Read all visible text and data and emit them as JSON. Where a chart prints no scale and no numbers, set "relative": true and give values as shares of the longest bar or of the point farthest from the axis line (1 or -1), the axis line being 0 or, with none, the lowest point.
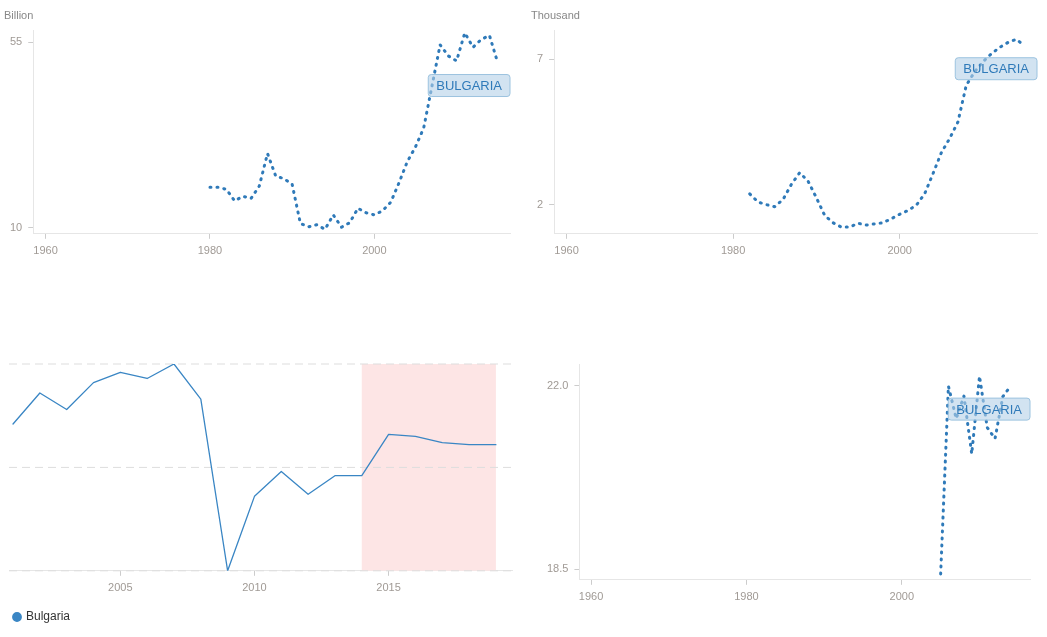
{
  "chart_data": [
    {
      "type": "line",
      "ylabel": "Billion",
      "x": [
        1980,
        1981,
        1982,
        1983,
        1984,
        1985,
        1986,
        1987,
        1988,
        1989,
        1990,
        1991,
        1992,
        1993,
        1994,
        1995,
        1996,
        1997,
        1998,
        1999,
        2000,
        2001,
        2002,
        2003,
        2004,
        2005,
        2006,
        2007,
        2008,
        2009,
        2010,
        2011,
        2012,
        2013,
        2014,
        2015
      ],
      "series": [
        {
          "name": "BULGARIA",
          "color": "#2f7ab9",
          "line_style": "dotted",
          "values": [
            19.8,
            19.8,
            19.3,
            16.5,
            17.6,
            17.1,
            20.1,
            28.0,
            22.5,
            21.9,
            20.5,
            11.0,
            10.2,
            10.7,
            9.6,
            13.1,
            10.1,
            11.2,
            14.7,
            13.6,
            13.1,
            14.1,
            16.2,
            20.9,
            26.0,
            29.6,
            34.2,
            44.3,
            54.4,
            51.7,
            50.5,
            57.3,
            53.8,
            55.7,
            56.7,
            50.1
          ]
        }
      ],
      "xlim": [
        1958.5,
        2016.5
      ],
      "xticks": [
        1960,
        1980,
        2000
      ],
      "ylim": [
        8.5,
        58
      ],
      "yticks": [
        10,
        55
      ],
      "marker": "none"
    },
    {
      "type": "line",
      "ylabel": "Thousand",
      "x": [
        1982,
        1983,
        1984,
        1985,
        1986,
        1987,
        1988,
        1989,
        1990,
        1991,
        1992,
        1993,
        1994,
        1995,
        1996,
        1997,
        1998,
        1999,
        2000,
        2001,
        2002,
        2003,
        2004,
        2005,
        2006,
        2007,
        2008,
        2009,
        2010,
        2011,
        2012,
        2013,
        2014,
        2015
      ],
      "series": [
        {
          "name": "BULGARIA",
          "color": "#2f7ab9",
          "line_style": "dotted",
          "values": [
            2.37,
            2.09,
            2.0,
            1.93,
            2.18,
            2.7,
            3.1,
            2.81,
            2.24,
            1.63,
            1.38,
            1.23,
            1.23,
            1.36,
            1.3,
            1.34,
            1.38,
            1.52,
            1.67,
            1.8,
            1.98,
            2.37,
            3.06,
            3.78,
            4.27,
            4.84,
            6.1,
            6.56,
            6.91,
            7.18,
            7.4,
            7.57,
            7.68,
            7.46
          ]
        }
      ],
      "xlim": [
        1958.5,
        2016.5
      ],
      "xticks": [
        1960,
        1980,
        2000
      ],
      "ylim": [
        1,
        8
      ],
      "yticks": [
        2,
        7
      ],
      "marker": "none"
    },
    {
      "type": "line",
      "relative": true,
      "x": [
        2001,
        2002,
        2003,
        2004,
        2005,
        2006,
        2007,
        2008,
        2009,
        2010,
        2011,
        2012,
        2013,
        2014,
        2015,
        2016,
        2017,
        2018,
        2019
      ],
      "series": [
        {
          "name": "Bulgaria",
          "color": "#3a86c4",
          "line_style": "solid",
          "values": [
            0.71,
            0.86,
            0.78,
            0.91,
            0.96,
            0.93,
            1,
            0.83,
            0,
            0.36,
            0.48,
            0.37,
            0.46,
            0.46,
            0.66,
            0.65,
            0.62,
            0.61,
            0.61
          ]
        }
      ],
      "xlim": [
        2000.85,
        2019.6
      ],
      "xticks": [
        2005,
        2010,
        2015
      ],
      "legend": "bottom left",
      "marker": "none",
      "ref_lines": [
        {
          "axis": "y",
          "value": 0,
          "color": "#dddddd",
          "line_style": "dashed"
        },
        {
          "axis": "y",
          "value": 0.5,
          "color": "#dddddd",
          "line_style": "dashed"
        },
        {
          "axis": "y",
          "value": 1,
          "color": "#dddddd",
          "line_style": "dashed"
        }
      ],
      "bands": [
        {
          "axis": "x",
          "from": 2014,
          "to": 2019,
          "color": "#fde5e5"
        }
      ]
    },
    {
      "type": "line",
      "x": [
        2005,
        2006,
        2007,
        2008,
        2009,
        2010,
        2011,
        2012,
        2013,
        2014
      ],
      "series": [
        {
          "name": "BULGARIA",
          "color": "#2f7ab9",
          "line_style": "dotted",
          "values": [
            18.41,
            21.99,
            21.37,
            21.8,
            20.7,
            22.18,
            21.2,
            20.99,
            21.79,
            21.99
          ]
        }
      ],
      "xlim": [
        1958.5,
        2016.5
      ],
      "xticks": [
        1960,
        1980,
        2000
      ],
      "ylim": [
        18.3,
        22.4
      ],
      "yticks": [
        {
          "value": 22,
          "label": "22.0"
        },
        18.5
      ],
      "marker": "none"
    }
  ]
}
